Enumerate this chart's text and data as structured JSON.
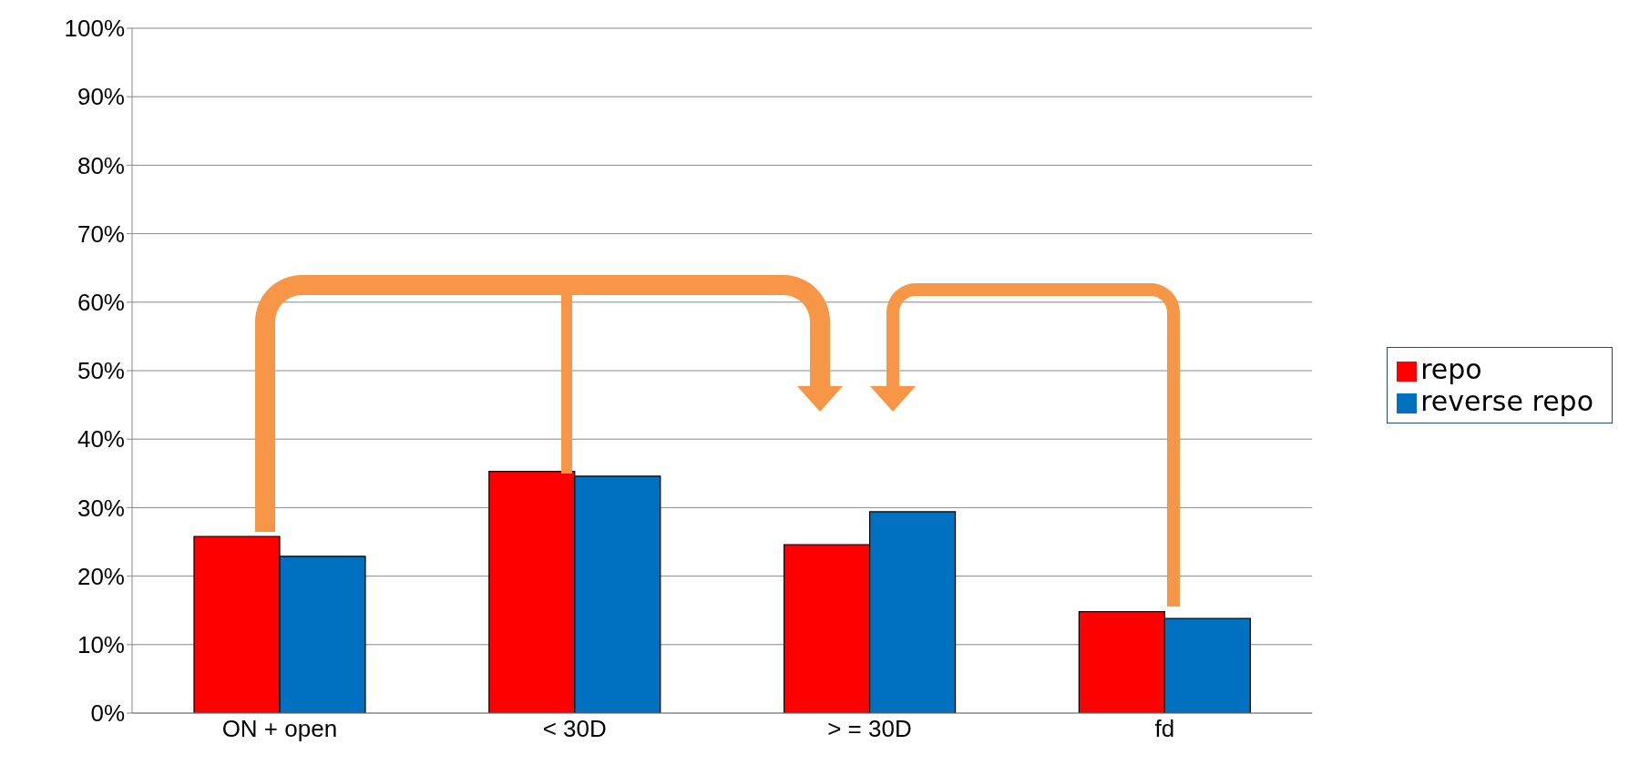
{
  "chart_data": {
    "type": "bar",
    "categories": [
      "ON + open",
      "< 30D",
      "> = 30D",
      "fd"
    ],
    "series": [
      {
        "name": "repo",
        "color": "#ff0000",
        "values": [
          25.8,
          35.3,
          24.6,
          14.8
        ]
      },
      {
        "name": "reverse repo",
        "color": "#0070c0",
        "values": [
          22.9,
          34.6,
          29.4,
          13.8
        ]
      }
    ],
    "ylim": [
      0,
      100
    ],
    "yticks": [
      {
        "value": 0,
        "label": "0%"
      },
      {
        "value": 10,
        "label": "10%"
      },
      {
        "value": 20,
        "label": "20%"
      },
      {
        "value": 30,
        "label": "30%"
      },
      {
        "value": 40,
        "label": "40%"
      },
      {
        "value": 50,
        "label": "50%"
      },
      {
        "value": 60,
        "label": "60%"
      },
      {
        "value": 70,
        "label": "70%"
      },
      {
        "value": 80,
        "label": "80%"
      },
      {
        "value": 90,
        "label": "90%"
      },
      {
        "value": 100,
        "label": "100%"
      }
    ],
    "grid": "y",
    "legend": "right"
  }
}
